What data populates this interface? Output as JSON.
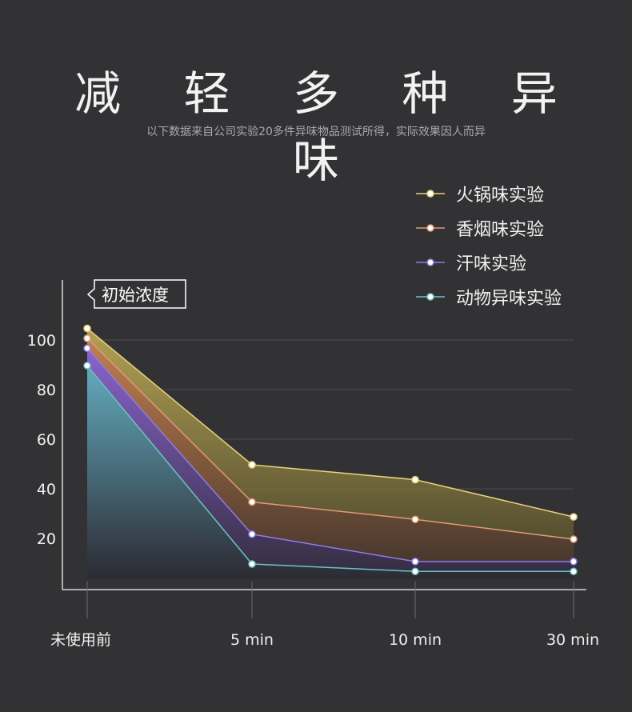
{
  "header": {
    "title": "减 轻 多 种 异 味",
    "subtitle": "以下数据来自公司实验20多件异味物品测试所得，实际效果因人而异"
  },
  "callout": "初始浓度",
  "chart_data": {
    "type": "area",
    "title": "减 轻 多 种 异 味",
    "subtitle": "以下数据来自公司实验20多件异味物品测试所得，实际效果因人而异",
    "categories": [
      "未使用前",
      "5 min",
      "10 min",
      "30 min"
    ],
    "y_ticks": [
      20,
      40,
      60,
      80,
      100
    ],
    "ylim": [
      0,
      120
    ],
    "grid": true,
    "legend_position": "top-right",
    "series": [
      {
        "name": "火锅味实验",
        "values": [
          105,
          50,
          44,
          29
        ],
        "color": "#e8d27a"
      },
      {
        "name": "香烟味实验",
        "values": [
          101,
          35,
          28,
          20
        ],
        "color": "#e39877"
      },
      {
        "name": "汗味实验",
        "values": [
          97,
          22,
          11,
          11
        ],
        "color": "#8c7bf0"
      },
      {
        "name": "动物异味实验",
        "values": [
          90,
          10,
          7,
          7
        ],
        "color": "#6cc3c3"
      }
    ]
  }
}
